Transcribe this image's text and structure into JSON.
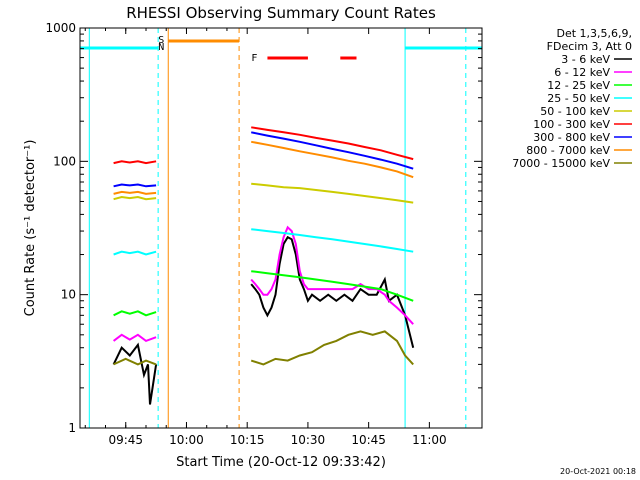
{
  "chart_data": {
    "type": "line",
    "title": "RHESSI Observing Summary Count Rates",
    "xlabel": "Start Time (20-Oct-12 09:33:42)",
    "ylabel": "Count Rate (s⁻¹ detector⁻¹)",
    "yscale": "log",
    "xlim": [
      "09:33:42",
      "11:13:00"
    ],
    "ylim": [
      1,
      1000
    ],
    "x_ticks": [
      "09:45",
      "10:00",
      "10:15",
      "10:30",
      "10:45",
      "11:00"
    ],
    "y_ticks": [
      "1",
      "10",
      "100",
      "1000"
    ],
    "legend_header": [
      "Det 1,3,5,6,9,",
      "FDecim 3, Att 0"
    ],
    "legend_position": "right",
    "footer_text": "20-Oct-2021 00:18",
    "flag_labels": {
      "saa": "S",
      "night": "N",
      "flare": "F"
    },
    "series": [
      {
        "name": "3 - 6 keV",
        "color": "#000000",
        "segments": [
          {
            "x": [
              "09:42:00",
              "09:44:00",
              "09:46:00",
              "09:48:00",
              "09:49:30",
              "09:50:30",
              "09:51:00",
              "09:52:30"
            ],
            "y": [
              3.0,
              4.0,
              3.5,
              4.2,
              2.5,
              3.0,
              1.5,
              3.0
            ]
          },
          {
            "x": [
              "10:16:00",
              "10:17:00",
              "10:18:00",
              "10:19:00",
              "10:20:00",
              "10:21:00",
              "10:22:00",
              "10:23:00",
              "10:24:00",
              "10:25:00",
              "10:26:00",
              "10:27:00",
              "10:28:00",
              "10:29:00",
              "10:30:00",
              "10:31:00",
              "10:33:00",
              "10:35:00",
              "10:37:00",
              "10:39:00",
              "10:41:00",
              "10:43:00",
              "10:45:00",
              "10:47:00",
              "10:49:00",
              "10:50:00",
              "10:52:00",
              "10:54:00",
              "10:56:00"
            ],
            "y": [
              12,
              11,
              10,
              8,
              7,
              8,
              10,
              17,
              24,
              27,
              26,
              20,
              13,
              11,
              9,
              10,
              9,
              10,
              9,
              10,
              9,
              11,
              10,
              10,
              13,
              9,
              10,
              7,
              4
            ]
          }
        ]
      },
      {
        "name": "6 - 12 keV",
        "color": "#ff00ff",
        "segments": [
          {
            "x": [
              "09:42:00",
              "09:44:00",
              "09:46:00",
              "09:48:00",
              "09:50:00",
              "09:52:30"
            ],
            "y": [
              4.5,
              5.0,
              4.6,
              5.0,
              4.5,
              4.8
            ]
          },
          {
            "x": [
              "10:16:00",
              "10:17:00",
              "10:18:00",
              "10:19:00",
              "10:20:00",
              "10:21:00",
              "10:22:00",
              "10:23:00",
              "10:24:00",
              "10:25:00",
              "10:26:00",
              "10:27:00",
              "10:28:00",
              "10:29:00",
              "10:30:00",
              "10:31:00",
              "10:33:00",
              "10:35:00",
              "10:37:00",
              "10:39:00",
              "10:41:00",
              "10:43:00",
              "10:45:00",
              "10:47:00",
              "10:49:00",
              "10:50:00",
              "10:52:00",
              "10:54:00",
              "10:56:00"
            ],
            "y": [
              13,
              12,
              11,
              10,
              10,
              11,
              13,
              20,
              27,
              32,
              30,
              24,
              15,
              12,
              11,
              11,
              11,
              11,
              11,
              11,
              11,
              12,
              11,
              11,
              10,
              9,
              8,
              7,
              6
            ]
          }
        ]
      },
      {
        "name": "12 - 25 keV",
        "color": "#00ff00",
        "segments": [
          {
            "x": [
              "09:42:00",
              "09:44:00",
              "09:46:00",
              "09:48:00",
              "09:50:00",
              "09:52:30"
            ],
            "y": [
              7.0,
              7.5,
              7.2,
              7.5,
              7.0,
              7.4
            ]
          },
          {
            "x": [
              "10:16:00",
              "10:20:00",
              "10:24:00",
              "10:28:00",
              "10:32:00",
              "10:36:00",
              "10:40:00",
              "10:44:00",
              "10:48:00",
              "10:52:00",
              "10:56:00"
            ],
            "y": [
              15,
              14.5,
              14,
              13.5,
              13,
              12.5,
              12,
              11.5,
              11,
              10,
              9
            ]
          }
        ]
      },
      {
        "name": "25 - 50 keV",
        "color": "#00ffff",
        "segments": [
          {
            "x": [
              "09:42:00",
              "09:44:00",
              "09:46:00",
              "09:48:00",
              "09:50:00",
              "09:52:30"
            ],
            "y": [
              20,
              21,
              20.5,
              21,
              20,
              21
            ]
          },
          {
            "x": [
              "10:16:00",
              "10:20:00",
              "10:24:00",
              "10:28:00",
              "10:32:00",
              "10:36:00",
              "10:40:00",
              "10:44:00",
              "10:48:00",
              "10:52:00",
              "10:56:00"
            ],
            "y": [
              31,
              30,
              29,
              28,
              27,
              26,
              25,
              24,
              23,
              22,
              21
            ]
          }
        ]
      },
      {
        "name": "50 - 100 keV",
        "color": "#cccc00",
        "segments": [
          {
            "x": [
              "09:42:00",
              "09:44:00",
              "09:46:00",
              "09:48:00",
              "09:50:00",
              "09:52:30"
            ],
            "y": [
              52,
              54,
              53,
              54,
              52,
              53
            ]
          },
          {
            "x": [
              "10:16:00",
              "10:20:00",
              "10:24:00",
              "10:28:00",
              "10:32:00",
              "10:36:00",
              "10:40:00",
              "10:44:00",
              "10:48:00",
              "10:52:00",
              "10:56:00"
            ],
            "y": [
              68,
              66,
              64,
              63,
              61,
              59,
              57,
              55,
              53,
              51,
              49
            ]
          }
        ]
      },
      {
        "name": "100 - 300 keV",
        "color": "#ff0000",
        "segments": [
          {
            "x": [
              "09:42:00",
              "09:44:00",
              "09:46:00",
              "09:48:00",
              "09:50:00",
              "09:52:30"
            ],
            "y": [
              97,
              100,
              98,
              100,
              97,
              100
            ]
          },
          {
            "x": [
              "10:16:00",
              "10:20:00",
              "10:24:00",
              "10:28:00",
              "10:32:00",
              "10:36:00",
              "10:40:00",
              "10:44:00",
              "10:48:00",
              "10:52:00",
              "10:56:00"
            ],
            "y": [
              180,
              172,
              165,
              158,
              150,
              143,
              136,
              128,
              121,
              112,
              104
            ]
          }
        ]
      },
      {
        "name": "300 - 800 keV",
        "color": "#0000ff",
        "segments": [
          {
            "x": [
              "09:42:00",
              "09:44:00",
              "09:46:00",
              "09:48:00",
              "09:50:00",
              "09:52:30"
            ],
            "y": [
              65,
              67,
              66,
              67,
              65,
              66
            ]
          },
          {
            "x": [
              "10:16:00",
              "10:20:00",
              "10:24:00",
              "10:28:00",
              "10:32:00",
              "10:36:00",
              "10:40:00",
              "10:44:00",
              "10:48:00",
              "10:52:00",
              "10:56:00"
            ],
            "y": [
              165,
              156,
              148,
              140,
              132,
              124,
              117,
              110,
              103,
              96,
              88
            ]
          }
        ]
      },
      {
        "name": "800 - 7000 keV",
        "color": "#ff8c00",
        "segments": [
          {
            "x": [
              "09:42:00",
              "09:44:00",
              "09:46:00",
              "09:48:00",
              "09:50:00",
              "09:52:30"
            ],
            "y": [
              57,
              59,
              58,
              59,
              57,
              58
            ]
          },
          {
            "x": [
              "10:16:00",
              "10:20:00",
              "10:24:00",
              "10:28:00",
              "10:32:00",
              "10:36:00",
              "10:40:00",
              "10:44:00",
              "10:48:00",
              "10:52:00",
              "10:56:00"
            ],
            "y": [
              140,
              133,
              126,
              119,
              113,
              107,
              101,
              96,
              90,
              84,
              76
            ]
          }
        ]
      },
      {
        "name": "7000 - 15000 keV",
        "color": "#808000",
        "segments": [
          {
            "x": [
              "09:42:00",
              "09:45:00",
              "09:48:00",
              "09:50:00",
              "09:52:30"
            ],
            "y": [
              3.0,
              3.3,
              3.0,
              3.2,
              3.0
            ]
          },
          {
            "x": [
              "10:16:00",
              "10:19:00",
              "10:22:00",
              "10:25:00",
              "10:28:00",
              "10:31:00",
              "10:34:00",
              "10:37:00",
              "10:40:00",
              "10:43:00",
              "10:46:00",
              "10:49:00",
              "10:52:00",
              "10:54:00",
              "10:56:00"
            ],
            "y": [
              3.2,
              3.0,
              3.3,
              3.2,
              3.5,
              3.7,
              4.2,
              4.5,
              5.0,
              5.3,
              5.0,
              5.3,
              4.5,
              3.5,
              3.0
            ]
          }
        ]
      }
    ],
    "flags": {
      "saa": {
        "color": "#ff8c00",
        "intervals": [
          [
            "09:55:30",
            "10:13:00"
          ]
        ]
      },
      "night": {
        "color": "#00ffff",
        "intervals": [
          [
            "09:33:42",
            "09:53:00"
          ],
          [
            "10:54:00",
            "11:13:00"
          ]
        ]
      },
      "flare": {
        "color": "#ff0000",
        "intervals": [
          [
            "10:20:00",
            "10:30:00"
          ],
          [
            "10:38:00",
            "10:42:00"
          ]
        ]
      }
    },
    "vertical_markers": [
      {
        "x": "09:36:00",
        "color": "#00ffff",
        "style": "solid"
      },
      {
        "x": "09:53:00",
        "color": "#00ffff",
        "style": "dashed"
      },
      {
        "x": "09:55:30",
        "color": "#ff8c00",
        "style": "solid"
      },
      {
        "x": "10:13:00",
        "color": "#ff8c00",
        "style": "dashed"
      },
      {
        "x": "10:54:00",
        "color": "#00ffff",
        "style": "solid"
      },
      {
        "x": "11:09:00",
        "color": "#00ffff",
        "style": "dashed"
      }
    ]
  }
}
